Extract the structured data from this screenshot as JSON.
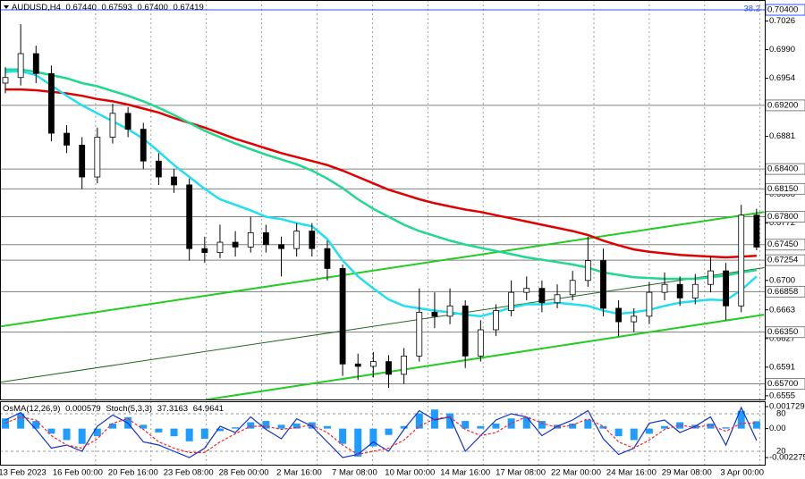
{
  "chart_data": [
    {
      "type": "candlestick",
      "title": "AUDUSD,H4",
      "header_values": [
        {
          "value": 0.6744,
          "label": "0.67440"
        },
        {
          "value": 0.67593,
          "label": "0.67593"
        },
        {
          "value": 0.674,
          "label": "0.67400"
        },
        {
          "value": 0.67419,
          "label": "0.67419"
        }
      ],
      "x_labels": [
        "13 Feb 2023",
        "16 Feb 00:00",
        "20 Feb 16:00",
        "23 Feb 08:00",
        "28 Feb 00:00",
        "2 Mar 16:00",
        "7 Mar 08:00",
        "10 Mar 00:00",
        "14 Mar 16:00",
        "17 Mar 08:00",
        "22 Mar 00:00",
        "24 Mar 16:00",
        "29 Mar 08:00",
        "3 Apr 00:00"
      ],
      "open": [
        0.6948,
        0.6955,
        0.6985,
        0.696,
        0.6885,
        0.687,
        0.683,
        0.688,
        0.691,
        0.689,
        0.685,
        0.683,
        0.682,
        0.674,
        0.6735,
        0.6748,
        0.6742,
        0.676,
        0.6745,
        0.674,
        0.6762,
        0.674,
        0.6715,
        0.6595,
        0.6592,
        0.6598,
        0.6582,
        0.6605,
        0.666,
        0.6655,
        0.6668,
        0.6605,
        0.6638,
        0.6662,
        0.6685,
        0.669,
        0.6672,
        0.6682,
        0.67,
        0.6725,
        0.6665,
        0.6648,
        0.6655,
        0.6685,
        0.6695,
        0.6678,
        0.6695,
        0.6712,
        0.6668,
        0.6782
      ],
      "high": [
        0.6968,
        0.7022,
        0.6995,
        0.697,
        0.6895,
        0.688,
        0.6892,
        0.6922,
        0.6918,
        0.6898,
        0.686,
        0.684,
        0.6828,
        0.6755,
        0.677,
        0.6762,
        0.678,
        0.677,
        0.6755,
        0.6772,
        0.6772,
        0.675,
        0.672,
        0.6608,
        0.661,
        0.6606,
        0.6615,
        0.669,
        0.6685,
        0.669,
        0.6675,
        0.665,
        0.667,
        0.67,
        0.6705,
        0.67,
        0.6695,
        0.6712,
        0.6755,
        0.674,
        0.6675,
        0.6665,
        0.6698,
        0.671,
        0.6705,
        0.6708,
        0.673,
        0.6722,
        0.6795,
        0.679
      ],
      "low": [
        0.6935,
        0.6945,
        0.6948,
        0.6875,
        0.686,
        0.6815,
        0.6822,
        0.6872,
        0.688,
        0.684,
        0.682,
        0.681,
        0.6725,
        0.6722,
        0.6728,
        0.673,
        0.6735,
        0.6735,
        0.6705,
        0.673,
        0.673,
        0.67,
        0.658,
        0.6575,
        0.6578,
        0.6565,
        0.657,
        0.6598,
        0.664,
        0.6645,
        0.659,
        0.6598,
        0.663,
        0.6655,
        0.6675,
        0.666,
        0.6665,
        0.6675,
        0.6692,
        0.6655,
        0.663,
        0.6635,
        0.6645,
        0.6675,
        0.6668,
        0.667,
        0.6685,
        0.665,
        0.666,
        0.6738
      ],
      "close": [
        0.6955,
        0.6985,
        0.696,
        0.6885,
        0.687,
        0.683,
        0.688,
        0.691,
        0.689,
        0.685,
        0.683,
        0.682,
        0.674,
        0.6735,
        0.6748,
        0.6742,
        0.676,
        0.6745,
        0.674,
        0.6762,
        0.674,
        0.6715,
        0.6595,
        0.6592,
        0.6598,
        0.6582,
        0.6605,
        0.666,
        0.6655,
        0.6668,
        0.6605,
        0.6638,
        0.6662,
        0.6685,
        0.669,
        0.6672,
        0.6682,
        0.67,
        0.6725,
        0.6665,
        0.6648,
        0.6655,
        0.6685,
        0.6695,
        0.6678,
        0.6695,
        0.6712,
        0.6668,
        0.6782,
        0.67419
      ],
      "series": [
        {
          "color": "#e00000",
          "values": [
            0.694,
            0.694,
            0.6939,
            0.6937,
            0.6935,
            0.6932,
            0.6928,
            0.6925,
            0.6921,
            0.6916,
            0.6911,
            0.6904,
            0.6898,
            0.6892,
            0.6885,
            0.6878,
            0.6872,
            0.6866,
            0.686,
            0.6855,
            0.685,
            0.6845,
            0.6838,
            0.683,
            0.6822,
            0.6814,
            0.6808,
            0.6802,
            0.6797,
            0.6793,
            0.6789,
            0.6786,
            0.6782,
            0.6778,
            0.6774,
            0.677,
            0.6766,
            0.6762,
            0.6757,
            0.675,
            0.6744,
            0.6739,
            0.6736,
            0.6734,
            0.6732,
            0.6731,
            0.673,
            0.6729,
            0.673,
            0.6731
          ]
        },
        {
          "color": "#20d890",
          "values": [
            0.6965,
            0.6965,
            0.6962,
            0.6958,
            0.6954,
            0.6948,
            0.6944,
            0.6938,
            0.6932,
            0.6925,
            0.6917,
            0.6908,
            0.6898,
            0.6888,
            0.688,
            0.6872,
            0.6865,
            0.6858,
            0.6852,
            0.6846,
            0.6838,
            0.6828,
            0.6816,
            0.6802,
            0.679,
            0.678,
            0.677,
            0.6762,
            0.6756,
            0.675,
            0.6745,
            0.6741,
            0.6737,
            0.6733,
            0.6729,
            0.6726,
            0.6723,
            0.672,
            0.6716,
            0.671,
            0.6707,
            0.6704,
            0.6703,
            0.6702,
            0.6702,
            0.6702,
            0.6704,
            0.6706,
            0.671,
            0.6713
          ]
        },
        {
          "color": "#20e0f0",
          "values": [
            0.6962,
            0.6963,
            0.6958,
            0.6945,
            0.6932,
            0.692,
            0.691,
            0.69,
            0.689,
            0.6878,
            0.6862,
            0.6845,
            0.683,
            0.6815,
            0.6802,
            0.6795,
            0.6788,
            0.678,
            0.6777,
            0.6772,
            0.6768,
            0.6752,
            0.6725,
            0.6705,
            0.669,
            0.6676,
            0.6668,
            0.6665,
            0.6662,
            0.666,
            0.6657,
            0.6655,
            0.666,
            0.6666,
            0.667,
            0.667,
            0.6672,
            0.667,
            0.6668,
            0.6662,
            0.6658,
            0.666,
            0.6663,
            0.6668,
            0.6672,
            0.6674,
            0.6676,
            0.6675,
            0.6688,
            0.6705
          ]
        }
      ],
      "trendlines": [
        {
          "color": "#22cc22",
          "points": [
            [
              -0.35,
              0.6642
            ],
            [
              49.5,
              0.6786
            ]
          ]
        },
        {
          "color": "#22cc22",
          "points": [
            [
              13.07,
              0.655
            ],
            [
              49.5,
              0.6657
            ]
          ]
        },
        {
          "color": "#226622",
          "points": [
            [
              -0.35,
              0.6572
            ],
            [
              49.5,
              0.6716
            ]
          ]
        }
      ],
      "ylim": [
        0.65504,
        0.70524
      ],
      "yticks": [
        {
          "value": 0.7026,
          "label": "0.7026"
        },
        {
          "value": 0.699,
          "label": "0.6990"
        },
        {
          "value": 0.6954,
          "label": "0.6954"
        },
        {
          "value": 0.6881,
          "label": "0.6881"
        },
        {
          "value": 0.6808,
          "label": "0.6808"
        },
        {
          "value": 0.6772,
          "label": "0.6772"
        },
        {
          "value": 0.67,
          "label": "0.6700"
        },
        {
          "value": 0.6663,
          "label": "0.6663"
        },
        {
          "value": 0.6627,
          "label": "0.6627"
        },
        {
          "value": 0.6591,
          "label": "0.6591"
        },
        {
          "value": 0.6555,
          "label": "0.6555"
        }
      ],
      "levels": [
        {
          "value": 0.704,
          "label": "0.70400",
          "color": "#3050ff"
        },
        {
          "value": 0.692,
          "label": "0.69200",
          "color": "#808080"
        },
        {
          "value": 0.684,
          "label": "0.68400",
          "color": "#808080"
        },
        {
          "value": 0.6815,
          "label": "0.68150",
          "color": "#808080"
        },
        {
          "value": 0.678,
          "label": "0.67800",
          "color": "#808080"
        },
        {
          "value": 0.6745,
          "label": "0.67450",
          "color": "#808080"
        },
        {
          "value": 0.67254,
          "label": "0.67254",
          "color": "#808080"
        },
        {
          "value": 0.66858,
          "label": "0.66858",
          "color": "#808080"
        },
        {
          "value": 0.6635,
          "label": "0.66350",
          "color": "#808080"
        },
        {
          "value": 0.657,
          "label": "0.65700",
          "color": "#808080"
        }
      ],
      "annotation": "38.2"
    },
    {
      "type": "oscillator",
      "series": [
        {
          "name": "OsMA(12,26,9)",
          "type": "bar",
          "color": "#1e9cff",
          "values": [
            0.0008,
            0.0012,
            0.0006,
            -0.0004,
            -0.0009,
            -0.0012,
            -0.0006,
            0.0004,
            0.0009,
            0.0003,
            -0.0003,
            -0.0006,
            -0.001,
            -0.0008,
            -0.0002,
            0.0001,
            0.0005,
            0.0006,
            0.0003,
            0.0004,
            0.0005,
            0.0002,
            -0.0012,
            -0.0022,
            -0.0014,
            -0.0005,
            0.0002,
            0.0012,
            0.0015,
            0.0012,
            0.0006,
            0.0002,
            0.0004,
            0.0008,
            0.0009,
            0.0006,
            0.0003,
            0.0004,
            0.0007,
            0.0002,
            -0.0006,
            -0.0009,
            -0.0004,
            0.0002,
            0.0005,
            0.0003,
            0.0004,
            0.0001,
            0.0014,
            0.000579
          ]
        },
        {
          "name": "Stoch(5,3,3)",
          "type": "line",
          "axis": "y2",
          "color": "#1030d0",
          "values": [
            70,
            82,
            55,
            25,
            30,
            20,
            60,
            78,
            65,
            35,
            30,
            20,
            10,
            25,
            60,
            50,
            75,
            55,
            40,
            72,
            60,
            35,
            10,
            15,
            35,
            20,
            55,
            85,
            70,
            75,
            20,
            45,
            70,
            80,
            75,
            45,
            60,
            70,
            85,
            40,
            15,
            25,
            65,
            70,
            50,
            60,
            75,
            30,
            90,
            37.3163
          ]
        },
        {
          "type": "line",
          "axis": "y2",
          "color": "#ff2020",
          "dashed": true,
          "values": [
            65,
            75,
            70,
            45,
            30,
            25,
            40,
            65,
            72,
            55,
            35,
            25,
            18,
            18,
            35,
            48,
            60,
            60,
            55,
            58,
            62,
            50,
            30,
            15,
            20,
            25,
            38,
            60,
            72,
            75,
            55,
            45,
            50,
            65,
            75,
            65,
            58,
            62,
            72,
            60,
            35,
            25,
            38,
            55,
            62,
            58,
            62,
            52,
            65,
            64.9641
          ]
        }
      ],
      "ylim": [
        -0.002837,
        0.00208
      ],
      "yticks": [
        0.001729,
        {
          "value": 0,
          "label": "0.00"
        },
        -0.002275
      ],
      "y2lim": [
        0,
        100
      ],
      "y2ticks": [
        80,
        20
      ]
    }
  ]
}
